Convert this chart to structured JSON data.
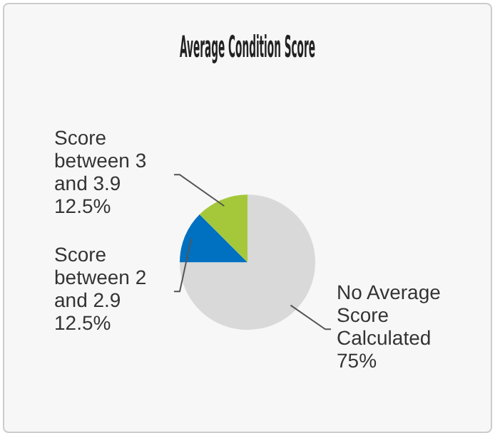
{
  "chart_data": {
    "type": "pie",
    "title": "Average Condition Score",
    "categories": [
      "No Average Score Calculated",
      "Score between 2 and 2.9",
      "Score between 3 and 3.9"
    ],
    "values": [
      75,
      12.5,
      12.5
    ],
    "value_labels": [
      "75%",
      "12.5%",
      "12.5%"
    ],
    "colors": [
      "#d9d9d9",
      "#0070c0",
      "#a5c83a"
    ],
    "legend": false
  }
}
